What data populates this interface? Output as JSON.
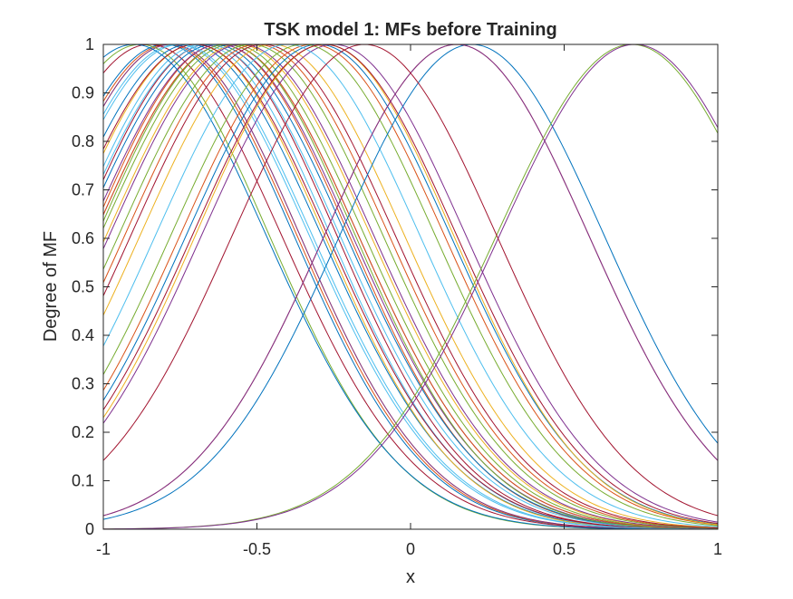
{
  "chart_data": {
    "type": "line",
    "title": "TSK model 1: MFs before Training",
    "xlabel": "x",
    "ylabel": "Degree of MF",
    "xlim": [
      -1,
      1
    ],
    "ylim": [
      0,
      1
    ],
    "xticks": [
      "-1",
      "-0.5",
      "0",
      "0.5",
      "1"
    ],
    "xtick_values": [
      -1,
      -0.5,
      0,
      0.5,
      1
    ],
    "yticks": [
      "0",
      "0.1",
      "0.2",
      "0.3",
      "0.4",
      "0.5",
      "0.6",
      "0.7",
      "0.8",
      "0.9",
      "1"
    ],
    "ytick_values": [
      0,
      0.1,
      0.2,
      0.3,
      0.4,
      0.5,
      0.6,
      0.7,
      0.8,
      0.9,
      1
    ],
    "grid": false,
    "box": true,
    "function": "gaussmf: exp(-(x-c)^2 / (2*sigma^2))",
    "series": [
      {
        "c": -0.8,
        "sigma": 0.42,
        "color": "#0072BD"
      },
      {
        "c": -0.79,
        "sigma": 0.42,
        "color": "#D95319"
      },
      {
        "c": -0.78,
        "sigma": 0.42,
        "color": "#EDB120"
      },
      {
        "c": -0.78,
        "sigma": 0.42,
        "color": "#7E2F8E"
      },
      {
        "c": -0.76,
        "sigma": 0.43,
        "color": "#4DBEEE"
      },
      {
        "c": -0.88,
        "sigma": 0.42,
        "color": "#77AC30"
      },
      {
        "c": -0.85,
        "sigma": 0.43,
        "color": "#A2142F"
      },
      {
        "c": -0.72,
        "sigma": 0.43,
        "color": "#0072BD"
      },
      {
        "c": -0.62,
        "sigma": 0.42,
        "color": "#D95319"
      },
      {
        "c": -0.7,
        "sigma": 0.42,
        "color": "#EDB120"
      },
      {
        "c": -0.6,
        "sigma": 0.43,
        "color": "#7E2F8E"
      },
      {
        "c": -0.68,
        "sigma": 0.42,
        "color": "#4DBEEE"
      },
      {
        "c": -0.58,
        "sigma": 0.43,
        "color": "#77AC30"
      },
      {
        "c": -0.66,
        "sigma": 0.42,
        "color": "#A2142F"
      },
      {
        "c": -0.64,
        "sigma": 0.43,
        "color": "#0072BD"
      },
      {
        "c": -0.6,
        "sigma": 0.43,
        "color": "#D95319"
      },
      {
        "c": -0.56,
        "sigma": 0.43,
        "color": "#EDB120"
      },
      {
        "c": -0.62,
        "sigma": 0.43,
        "color": "#7E2F8E"
      },
      {
        "c": -0.66,
        "sigma": 0.43,
        "color": "#4DBEEE"
      },
      {
        "c": -0.6,
        "sigma": 0.42,
        "color": "#77AC30"
      },
      {
        "c": -0.7,
        "sigma": 0.43,
        "color": "#A2142F"
      },
      {
        "c": -0.9,
        "sigma": 0.43,
        "color": "#0072BD"
      },
      {
        "c": -0.5,
        "sigma": 0.43,
        "color": "#D95319"
      },
      {
        "c": -0.45,
        "sigma": 0.43,
        "color": "#EDB120"
      },
      {
        "c": -0.55,
        "sigma": 0.43,
        "color": "#7E2F8E"
      },
      {
        "c": -0.75,
        "sigma": 0.43,
        "color": "#4DBEEE"
      },
      {
        "c": -0.52,
        "sigma": 0.43,
        "color": "#77AC30"
      },
      {
        "c": -0.48,
        "sigma": 0.43,
        "color": "#A2142F"
      },
      {
        "c": -0.3,
        "sigma": 0.43,
        "color": "#0072BD"
      },
      {
        "c": -0.32,
        "sigma": 0.43,
        "color": "#D95319"
      },
      {
        "c": -0.28,
        "sigma": 0.42,
        "color": "#EDB120"
      },
      {
        "c": -0.25,
        "sigma": 0.43,
        "color": "#7E2F8E"
      },
      {
        "c": -0.4,
        "sigma": 0.43,
        "color": "#4DBEEE"
      },
      {
        "c": -0.35,
        "sigma": 0.43,
        "color": "#77AC30"
      },
      {
        "c": -0.28,
        "sigma": 0.43,
        "color": "#A2142F"
      },
      {
        "c": 0.2,
        "sigma": 0.43,
        "color": "#0072BD"
      },
      {
        "c": 0.15,
        "sigma": 0.43,
        "color": "#D95319"
      },
      {
        "c": 0.15,
        "sigma": 0.43,
        "color": "#7E2F8E"
      },
      {
        "c": 0.72,
        "sigma": 0.44,
        "color": "#77AC30"
      },
      {
        "c": 0.73,
        "sigma": 0.44,
        "color": "#7E2F8E"
      },
      {
        "c": -0.15,
        "sigma": 0.43,
        "color": "#A2142F"
      }
    ]
  }
}
